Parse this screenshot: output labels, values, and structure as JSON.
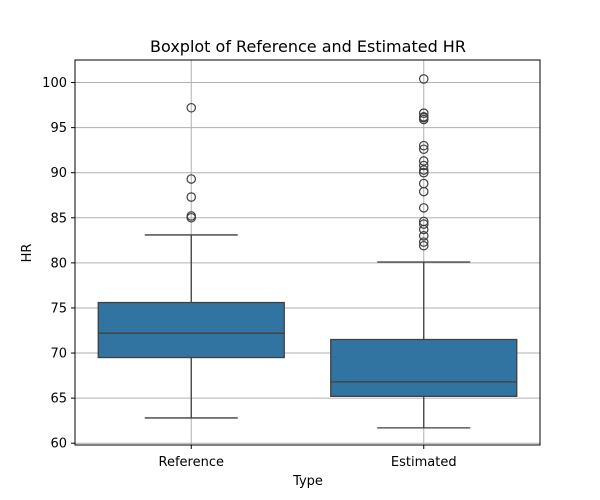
{
  "chart_data": {
    "type": "box",
    "title": "Boxplot of Reference and Estimated HR",
    "xlabel": "Type",
    "ylabel": "HR",
    "ylim": [
      59.8,
      102.5
    ],
    "yticks": [
      60,
      65,
      70,
      75,
      80,
      85,
      90,
      95,
      100
    ],
    "grid": true,
    "box_color": "#3274a1",
    "line_color": "#3f3f3f",
    "grid_color": "#b0b0b0",
    "categories": [
      "Reference",
      "Estimated"
    ],
    "series": [
      {
        "category": "Reference",
        "whisker_low": 62.8,
        "q1": 69.5,
        "median": 72.2,
        "q3": 75.6,
        "whisker_high": 83.1,
        "outliers": [
          85.0,
          85.2,
          87.3,
          89.3,
          97.2
        ]
      },
      {
        "category": "Estimated",
        "whisker_low": 61.7,
        "q1": 65.2,
        "median": 66.8,
        "q3": 71.5,
        "whisker_high": 80.1,
        "outliers": [
          81.9,
          82.3,
          83.0,
          83.7,
          84.3,
          84.6,
          86.1,
          87.9,
          88.8,
          90.0,
          90.3,
          90.8,
          91.3,
          92.6,
          93.0,
          95.9,
          96.1,
          96.2,
          96.6,
          100.4
        ]
      }
    ]
  }
}
